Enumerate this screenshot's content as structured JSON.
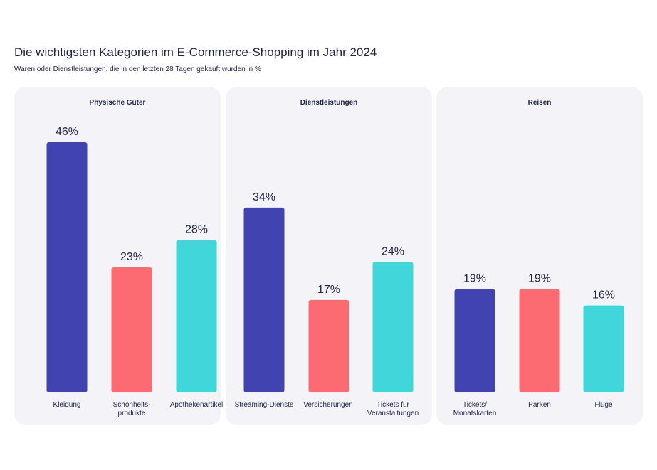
{
  "title": "Die wichtigsten Kategorien im E-Commerce-Shopping im Jahr 2024",
  "subtitle": "Waren oder Dienstleistungen, die in den letzten 28 Tagen gekauft wurden in %",
  "colors": [
    "#4144b0",
    "#fd6b72",
    "#40d6da"
  ],
  "chart_data": [
    {
      "type": "bar",
      "title": "Physische Güter",
      "categories": [
        "Kleidung",
        "Schönheits-\nprodukte",
        "Apothekenartikel"
      ],
      "values": [
        46,
        23,
        28
      ],
      "labels": [
        "46%",
        "23%",
        "28%"
      ],
      "ylim": [
        0,
        46
      ]
    },
    {
      "type": "bar",
      "title": "Dienstleistungen",
      "categories": [
        "Streaming-Dienste",
        "Versicherungen",
        "Tickets für\nVeranstaltungen"
      ],
      "values": [
        34,
        17,
        24
      ],
      "labels": [
        "34%",
        "17%",
        "24%"
      ],
      "ylim": [
        0,
        46
      ]
    },
    {
      "type": "bar",
      "title": "Reisen",
      "categories": [
        "Tickets/\nMonatskarten",
        "Parken",
        "Flüge"
      ],
      "values": [
        19,
        19,
        16
      ],
      "labels": [
        "19%",
        "19%",
        "16%"
      ],
      "ylim": [
        0,
        46
      ]
    }
  ]
}
